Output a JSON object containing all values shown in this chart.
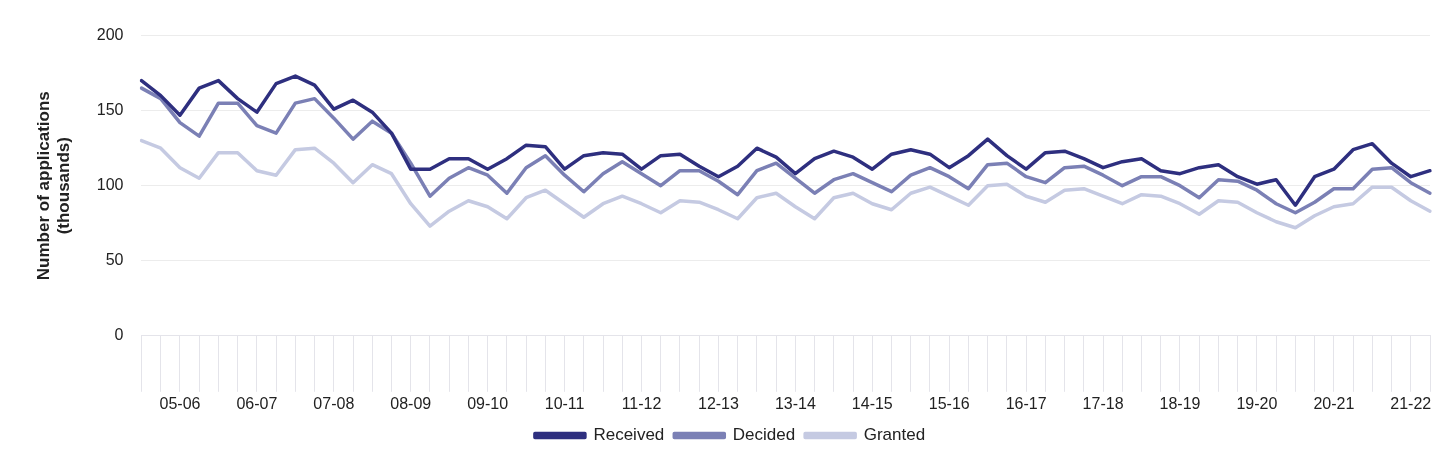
{
  "chart_data": {
    "type": "line",
    "ylabel": "Number of applications (thousands)",
    "categories": [
      null,
      null,
      "05-06",
      null,
      null,
      null,
      "06-07",
      null,
      null,
      null,
      "07-08",
      null,
      null,
      null,
      "08-09",
      null,
      null,
      null,
      "09-10",
      null,
      null,
      null,
      "10-11",
      null,
      null,
      null,
      "11-12",
      null,
      null,
      null,
      "12-13",
      null,
      null,
      null,
      "13-14",
      null,
      null,
      null,
      "14-15",
      null,
      null,
      null,
      "15-16",
      null,
      null,
      null,
      "16-17",
      null,
      null,
      null,
      "17-18",
      null,
      null,
      null,
      "18-19",
      null,
      null,
      null,
      "19-20",
      null,
      null,
      null,
      "20-21",
      null,
      null,
      null,
      "21-22",
      null
    ],
    "series": [
      {
        "name": "Received",
        "color": "#2e2f7f",
        "values": [
          170,
          160,
          147,
          165,
          170,
          158,
          149,
          168,
          173,
          167,
          151,
          157,
          149,
          135,
          111,
          111,
          118,
          118,
          111,
          118,
          127,
          126,
          111,
          120,
          122,
          121,
          111,
          120,
          121,
          113,
          106,
          113,
          125,
          119,
          108,
          118,
          123,
          119,
          111,
          121,
          124,
          121,
          112,
          120,
          131,
          120,
          111,
          122,
          123,
          118,
          112,
          116,
          118,
          110,
          108,
          112,
          114,
          106,
          101,
          104,
          87,
          106,
          111,
          124,
          128,
          115,
          106,
          110
        ]
      },
      {
        "name": "Decided",
        "color": "#7b80b5",
        "values": [
          165,
          158,
          142,
          133,
          155,
          155,
          140,
          135,
          155,
          158,
          145,
          131,
          143,
          135,
          115,
          93,
          105,
          112,
          107,
          95,
          112,
          120,
          107,
          96,
          108,
          116,
          108,
          100,
          110,
          110,
          103,
          94,
          110,
          115,
          105,
          95,
          104,
          108,
          102,
          96,
          107,
          112,
          106,
          98,
          114,
          115,
          106,
          102,
          112,
          113,
          107,
          100,
          106,
          106,
          100,
          92,
          104,
          103,
          97,
          88,
          82,
          89,
          98,
          98,
          111,
          112,
          102,
          95
        ]
      },
      {
        "name": "Granted",
        "color": "#c5cae2",
        "values": [
          130,
          125,
          112,
          105,
          122,
          122,
          110,
          107,
          124,
          125,
          115,
          102,
          114,
          108,
          88,
          73,
          83,
          90,
          86,
          78,
          92,
          97,
          88,
          79,
          88,
          93,
          88,
          82,
          90,
          89,
          84,
          78,
          92,
          95,
          86,
          78,
          92,
          95,
          88,
          84,
          95,
          99,
          93,
          87,
          100,
          101,
          93,
          89,
          97,
          98,
          93,
          88,
          94,
          93,
          88,
          81,
          90,
          89,
          82,
          76,
          72,
          80,
          86,
          88,
          99,
          99,
          90,
          83
        ]
      }
    ],
    "ylim": [
      0,
      200
    ],
    "yticks": [
      0,
      50,
      100,
      150,
      200
    ],
    "grid": "y",
    "legend": "bottom",
    "marker": "none",
    "line_style": "solid"
  }
}
